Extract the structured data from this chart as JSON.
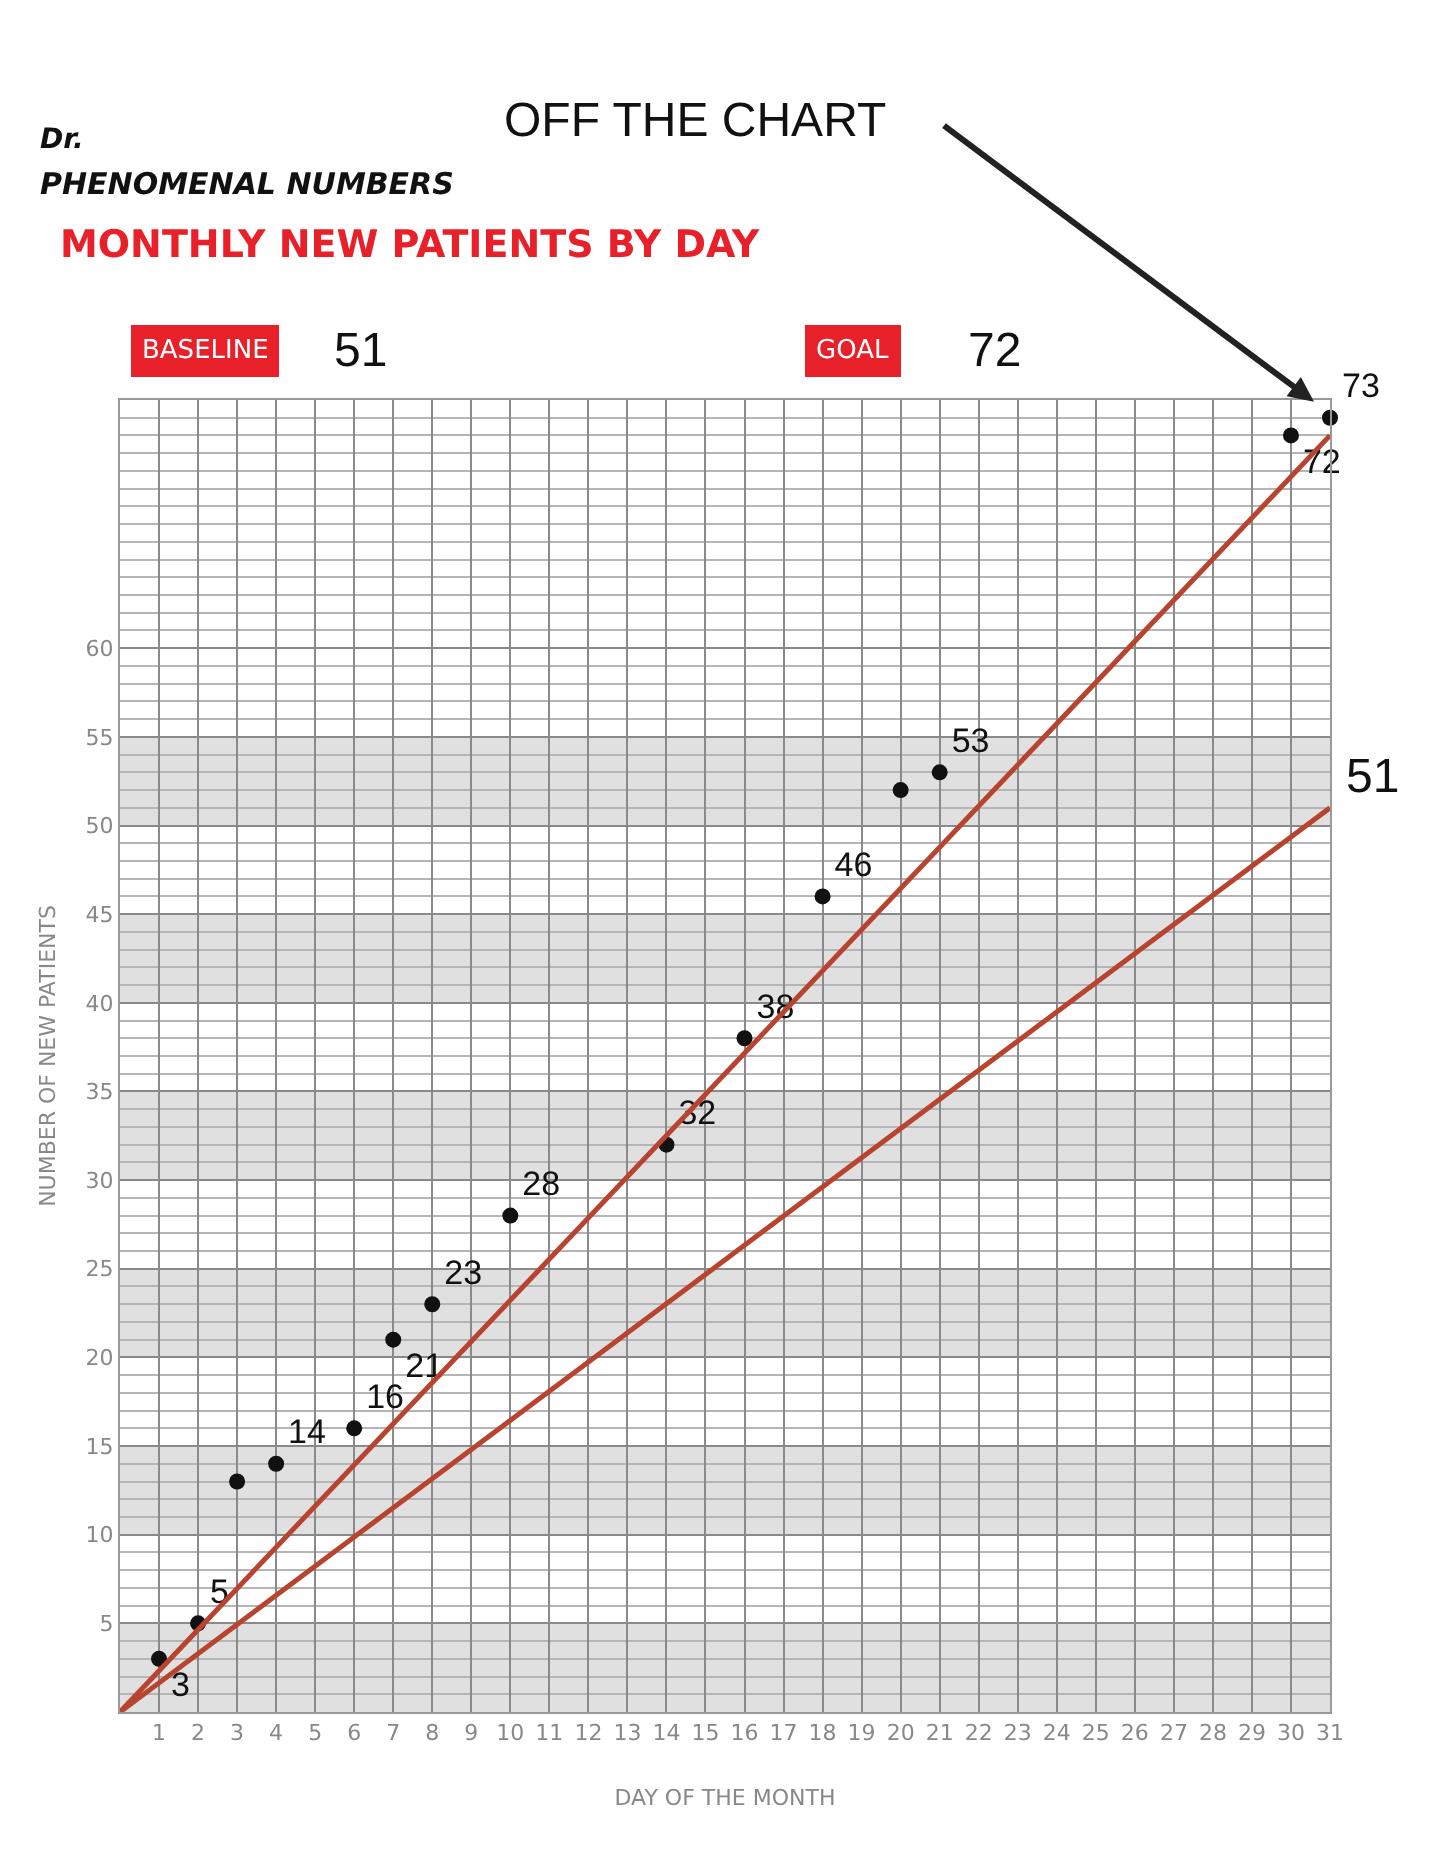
{
  "chart_data": {
    "type": "scatter",
    "title": "MONTHLY NEW PATIENTS BY DAY",
    "subtitle": "PHENOMENAL NUMBERS",
    "xlabel": "DAY OF THE MONTH",
    "ylabel": "NUMBER OF NEW PATIENTS",
    "series": [
      {
        "color": "#111111",
        "marker": "circle",
        "x": [
          1,
          2,
          3,
          4,
          6,
          7,
          8,
          10,
          14,
          16,
          18,
          20,
          21,
          30,
          31
        ],
        "values": [
          3,
          5,
          13,
          14,
          16,
          21,
          23,
          28,
          32,
          38,
          46,
          52,
          53,
          72,
          73
        ],
        "value_labels": [
          "3",
          "5",
          null,
          "14",
          "16",
          "21",
          "23",
          "28",
          "32",
          "38",
          "46",
          null,
          "53",
          "72",
          "73"
        ]
      },
      {
        "type": "line",
        "color": "#b8432f",
        "x": [
          0,
          31
        ],
        "values": [
          0,
          72
        ]
      },
      {
        "type": "line",
        "color": "#b8432f",
        "x": [
          0,
          31
        ],
        "values": [
          0,
          51
        ]
      }
    ],
    "annotations": [
      "Dr.",
      "BASELINE",
      "51",
      "GOAL",
      "72",
      "OFF THE CHART",
      {
        "text": "51",
        "x": 31,
        "y": 51
      }
    ],
    "bands": [
      {
        "axis": "y",
        "from": 0,
        "to": 5,
        "color": "#e0e0e0"
      },
      {
        "axis": "y",
        "from": 10,
        "to": 15,
        "color": "#e0e0e0"
      },
      {
        "axis": "y",
        "from": 20,
        "to": 25,
        "color": "#e0e0e0"
      },
      {
        "axis": "y",
        "from": 30,
        "to": 35,
        "color": "#e0e0e0"
      },
      {
        "axis": "y",
        "from": 40,
        "to": 45,
        "color": "#e0e0e0"
      },
      {
        "axis": "y",
        "from": 50,
        "to": 55,
        "color": "#e0e0e0"
      }
    ],
    "xlim": [
      0,
      31
    ],
    "ylim": [
      0,
      74
    ],
    "xticks": [
      1,
      2,
      3,
      4,
      5,
      6,
      7,
      8,
      9,
      10,
      11,
      12,
      13,
      14,
      15,
      16,
      17,
      18,
      19,
      20,
      21,
      22,
      23,
      24,
      25,
      26,
      27,
      28,
      29,
      30,
      31
    ],
    "yticks": [
      5,
      10,
      15,
      20,
      25,
      30,
      35,
      40,
      45,
      50,
      55,
      60
    ],
    "grid": true
  }
}
